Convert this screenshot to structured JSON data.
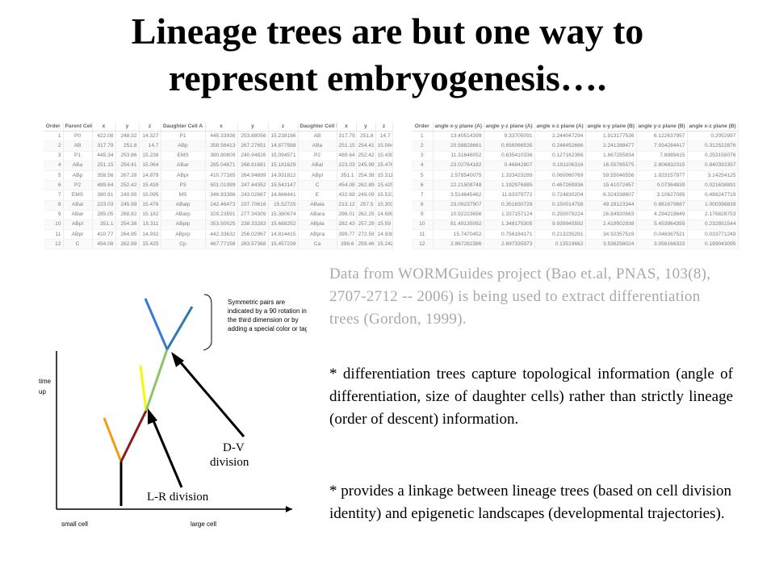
{
  "title": {
    "line1": "Lineage trees are but one way to",
    "line2": "represent embryogenesis…."
  },
  "left_table": {
    "headers": [
      "Order",
      "Parent Cell",
      "x",
      "y",
      "z",
      "Daughter Cell A",
      "x",
      "y",
      "z",
      "Daughter Cell B",
      "x",
      "y",
      "z"
    ],
    "rows": [
      [
        "1",
        "P0",
        "422.08",
        "248.32",
        "14.327",
        "P1",
        "445.33936",
        "253.88056",
        "15.238186",
        "AB",
        "317.79",
        "251.8",
        "14.7"
      ],
      [
        "2",
        "AB",
        "317.79",
        "251.8",
        "14.7",
        "ABp",
        "358.56413",
        "267.27651",
        "14.877588",
        "ABa",
        "251.15",
        "254.41",
        "15.064"
      ],
      [
        "3",
        "P1",
        "445.34",
        "253.86",
        "15.238",
        "EMS",
        "380.80609",
        "240.94826",
        "15.094571",
        "P2",
        "489.64",
        "252.42",
        "15.439"
      ],
      [
        "4",
        "ABa",
        "251.15",
        "254.41",
        "15.064",
        "ABar",
        "285.04671",
        "268.81681",
        "15.181629",
        "ABal",
        "223.03",
        "245.99",
        "15.476"
      ],
      [
        "5",
        "ABp",
        "358.56",
        "267.28",
        "14.878",
        "ABpr",
        "410.77165",
        "264.94699",
        "14.931812",
        "ABpl",
        "351.1",
        "254.38",
        "15.311"
      ],
      [
        "6",
        "P2",
        "489.64",
        "252.42",
        "15.439",
        "P3",
        "501.01999",
        "247.44352",
        "15.542147",
        "C",
        "454.08",
        "262.89",
        "15.425"
      ],
      [
        "7",
        "EMS",
        "380.81",
        "240.95",
        "15.095",
        "MS",
        "346.93386",
        "243.02667",
        "14.666441",
        "E",
        "432.69",
        "249.09",
        "15.537"
      ],
      [
        "8",
        "ABal",
        "223.03",
        "245.99",
        "15.476",
        "ABalp",
        "242.46473",
        "237.70616",
        "15.52725",
        "ABala",
        "213.12",
        "257.5",
        "15.303"
      ],
      [
        "9",
        "ABar",
        "285.05",
        "268.82",
        "15.182",
        "ABarp",
        "329.23591",
        "277.34309",
        "15.380674",
        "ABara",
        "298.01",
        "262.25",
        "14.689"
      ],
      [
        "10",
        "ABpl",
        "351.1",
        "254.38",
        "15.311",
        "ABplp",
        "353.50025",
        "238.33283",
        "15.688252",
        "ABpla",
        "282.43",
        "257.29",
        "15.59"
      ],
      [
        "11",
        "ABpr",
        "410.77",
        "264.95",
        "14.932",
        "ABprp",
        "442.33632",
        "256.02967",
        "14.814415",
        "ABpra",
        "399.77",
        "272.59",
        "14.938"
      ],
      [
        "12",
        "C",
        "454.08",
        "262.89",
        "15.425",
        "Cp",
        "467.77156",
        "263.57368",
        "15.457239",
        "Ca",
        "398.6",
        "259.46",
        "15.242"
      ]
    ]
  },
  "right_table": {
    "headers": [
      "Order",
      "angle x-y plane (A)",
      "angle y-z plane (A)",
      "angle x-z plane (A)",
      "angle x-y plane (B)",
      "angle y-z plane (B)",
      "angle x-z plane (B)"
    ],
    "rows": [
      [
        "1",
        "13.40514399",
        "9.33705091",
        "2.244047294",
        "1.913177536",
        "6.122637957",
        "0.2052997"
      ],
      [
        "2",
        "20.58828661",
        "0.656066535",
        "0.246452666",
        "2.241288477",
        "7.934284417",
        "0.312522876"
      ],
      [
        "3",
        "11.31646052",
        "0.635410336",
        "0.127162366",
        "1.667255834",
        "7.8989415",
        "0.253158076"
      ],
      [
        "4",
        "23.02764182",
        "0.46842807",
        "0.191106316",
        "16.55785575",
        "2.806832315",
        "0.840392357"
      ],
      [
        "5",
        "2.578540075",
        "1.333423289",
        "0.060060769",
        "59.55046556",
        "1.923157977",
        "3.14254125"
      ],
      [
        "6",
        "22.21508748",
        "1.192976885",
        "0.467269936",
        "15.41072457",
        "0.07364839",
        "0.021638891"
      ],
      [
        "7",
        "3.514645462",
        "11.63379772",
        "0.724830204",
        "8.324338607",
        "3.10627085",
        "0.488247719"
      ],
      [
        "8",
        "23.09237907",
        "0.351630729",
        "0.150014758",
        "49.28123344",
        "0.861679687",
        "1.000398839"
      ],
      [
        "9",
        "10.92223656",
        "1.337157124",
        "0.250079224",
        "26.84920563",
        "4.294219649",
        "2.176828753"
      ],
      [
        "10",
        "81.49135092",
        "1.348175305",
        "9.939945592",
        "2.419502938",
        "5.453964359",
        "0.232851544"
      ],
      [
        "11",
        "15.7470452",
        "0.756184171",
        "0.213235291",
        "34.92357519",
        "0.048367521",
        "0.033771249"
      ],
      [
        "12",
        "2.867282386",
        "2.697335973",
        "0.13519662",
        "3.536258024",
        "3.056166333",
        "0.189043095"
      ]
    ]
  },
  "diagram": {
    "note_lines": [
      "Symmetric pairs are",
      "indicated by a 90 rotation in",
      "the third dimension or by",
      "adding a special color or tag"
    ],
    "y_label_lines": [
      "time",
      "up"
    ],
    "x_label_left": "small cell",
    "x_label_right": "large cell",
    "lr_label": "L-R division",
    "dv_label_lines": [
      "D-V",
      "division"
    ],
    "colors": {
      "trunk": "#000000",
      "orange": "#f39c12",
      "darkred": "#8b1a1a",
      "yellow": "#f7f70a",
      "green": "#8dc36a",
      "blue": "#3a78d8",
      "steelblue": "#2f7aaa"
    }
  },
  "text": {
    "source": "Data from WORMGuides project (Bao et.al, PNAS, 103(8), 2707-2712 -- 2006) is being used to extract differentiation trees (Gordon, 1999).",
    "bullet1": "* differentiation trees capture topological information (angle of differentiation, size of daughter cells) rather than strictly lineage (order of descent) information.",
    "bullet2": "* provides a linkage between lineage trees (based on cell division identity) and epigenetic landscapes (developmental trajectories)."
  }
}
